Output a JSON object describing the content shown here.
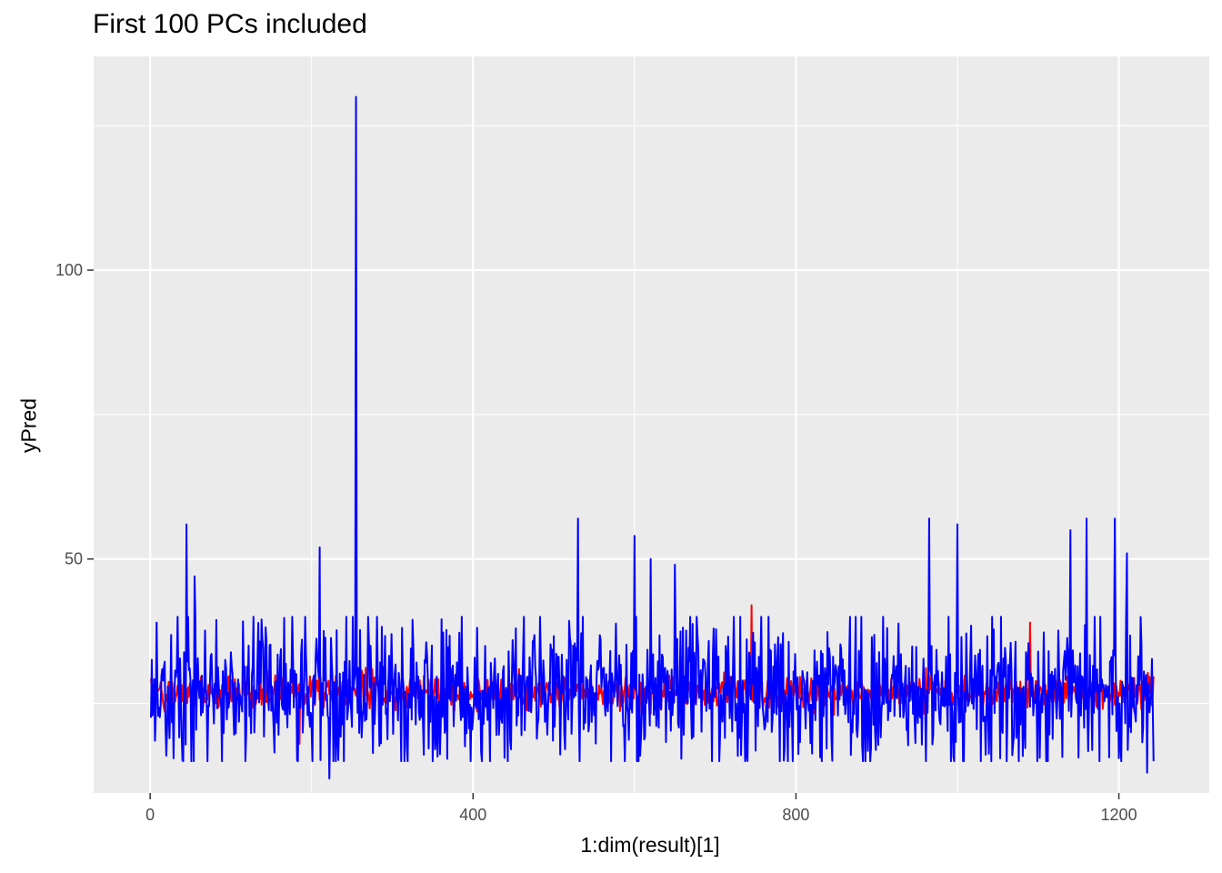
{
  "chart_data": {
    "type": "line",
    "title": "First 100 PCs included",
    "xlabel": "1:dim(result)[1]",
    "ylabel": "yPred",
    "xlim": [
      -70,
      1312
    ],
    "ylim": [
      9.5,
      137
    ],
    "x_ticks": [
      0,
      400,
      800,
      1200
    ],
    "x_tick_labels": [
      "0",
      "400",
      "800",
      "1200"
    ],
    "y_ticks": [
      50,
      100
    ],
    "y_tick_labels": [
      "50",
      "100"
    ],
    "grid": true,
    "n_points": 1243,
    "series": [
      {
        "color": "#ff0000",
        "x_start": 1,
        "approx_center": 27,
        "approx_range": [
          18,
          42
        ],
        "notable_points": [
          [
            185,
            18
          ],
          [
            745,
            42
          ],
          [
            1090,
            39
          ],
          [
            1215,
            22
          ]
        ]
      },
      {
        "color": "#0000ff",
        "x_start": 1,
        "approx_center": 27,
        "approx_range": [
          12,
          130
        ],
        "notable_points": [
          [
            8,
            39
          ],
          [
            45,
            56
          ],
          [
            55,
            47
          ],
          [
            210,
            52
          ],
          [
            222,
            12
          ],
          [
            255,
            130
          ],
          [
            530,
            57
          ],
          [
            600,
            54
          ],
          [
            620,
            50
          ],
          [
            650,
            49
          ],
          [
            965,
            57
          ],
          [
            1000,
            56
          ],
          [
            1140,
            55
          ],
          [
            1160,
            57
          ],
          [
            1195,
            57
          ],
          [
            1210,
            51
          ],
          [
            1235,
            13
          ],
          [
            1245,
            46
          ]
        ]
      }
    ]
  }
}
